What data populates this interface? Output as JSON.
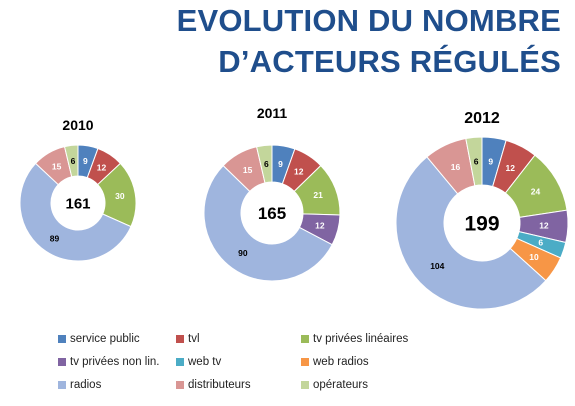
{
  "title": {
    "line1": "EVOLUTION DU NOMBRE",
    "line2": "D’ACTEURS RÉGULÉS"
  },
  "chart_data": [
    {
      "type": "pie",
      "variant": "donut",
      "title": "2010",
      "total": "161",
      "categories": [
        "service public",
        "tvl",
        "tv privées linéaires",
        "tv privées non lin.",
        "web tv",
        "web radios",
        "radios",
        "distributeurs",
        "opérateurs"
      ],
      "values": [
        9,
        12,
        30,
        0,
        0,
        0,
        89,
        15,
        6
      ]
    },
    {
      "type": "pie",
      "variant": "donut",
      "title": "2011",
      "total": "165",
      "categories": [
        "service public",
        "tvl",
        "tv privées linéaires",
        "tv privées non lin.",
        "web tv",
        "web radios",
        "radios",
        "distributeurs",
        "opérateurs"
      ],
      "values": [
        9,
        12,
        21,
        12,
        0,
        0,
        90,
        15,
        6
      ]
    },
    {
      "type": "pie",
      "variant": "donut",
      "title": "2012",
      "total": "199",
      "categories": [
        "service public",
        "tvl",
        "tv privées linéaires",
        "tv privées non lin.",
        "web tv",
        "web radios",
        "radios",
        "distributeurs",
        "opérateurs"
      ],
      "values": [
        9,
        12,
        24,
        12,
        6,
        10,
        104,
        16,
        6
      ]
    }
  ],
  "legend": [
    {
      "label": "service public",
      "color": "#4f81bd"
    },
    {
      "label": "tvl",
      "color": "#c0504d"
    },
    {
      "label": "tv privées linéaires",
      "color": "#9bbb59"
    },
    {
      "label": "tv privées non lin.",
      "color": "#8064a2"
    },
    {
      "label": "web tv",
      "color": "#4bacc6"
    },
    {
      "label": "web radios",
      "color": "#f79646"
    },
    {
      "label": "radios",
      "color": "#9fb5de"
    },
    {
      "label": "distributeurs",
      "color": "#d99694"
    },
    {
      "label": "opérateurs",
      "color": "#c3d69b"
    }
  ],
  "label_colors": {
    "inside_white": "#ffffff",
    "inside_dark": "#000000"
  }
}
